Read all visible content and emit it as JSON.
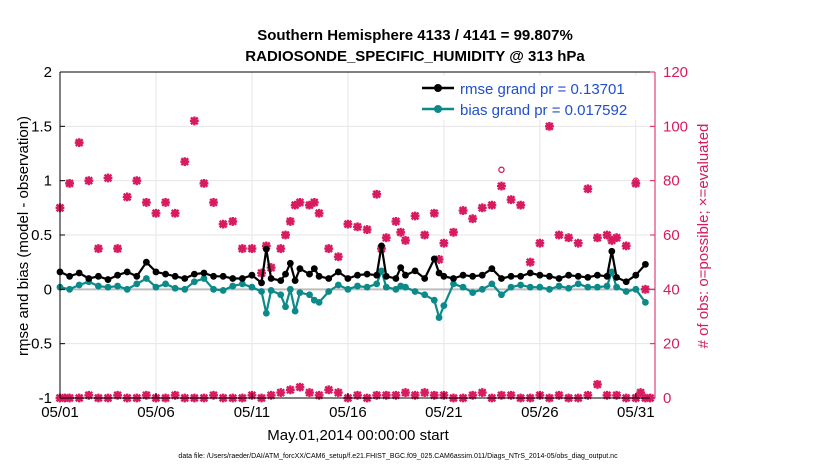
{
  "chart_data": {
    "type": "line",
    "title": "Southern Hemisphere 4133 / 4141 = 99.807%",
    "subtitle": "RADIOSONDE_SPECIFIC_HUMIDITY @ 313 hPa",
    "xlabel": "May.01,2014 00:00:00 start",
    "ylabel": "rmse and bias (model - observation)",
    "ylabel_right": "# of obs: o=possible; ×=evaluated",
    "footer": "data file: /Users/raeder/DAI/ATM_forcXX/CAM6_setup/f.e21.FHIST_BGC.f09_025.CAM6assim.011/Diags_NTrS_2014-05/obs_diag_output.nc",
    "xlim": [
      1,
      32
    ],
    "ylim": [
      -1,
      2
    ],
    "ylim_right": [
      0,
      120
    ],
    "x_ticks": [
      1,
      6,
      11,
      16,
      21,
      26,
      31
    ],
    "x_tick_labels": [
      "05/01",
      "05/06",
      "05/11",
      "05/16",
      "05/21",
      "05/26",
      "05/31"
    ],
    "y_ticks": [
      -1,
      -0.5,
      0,
      0.5,
      1,
      1.5,
      2
    ],
    "y_tick_labels": [
      "-1",
      "-0.5",
      "0",
      "0.5",
      "1",
      "1.5",
      "2"
    ],
    "y_right_ticks": [
      0,
      20,
      40,
      60,
      80,
      100,
      120
    ],
    "y_right_tick_labels": [
      "0",
      "20",
      "40",
      "60",
      "80",
      "100",
      "120"
    ],
    "grid": true,
    "legend_position": "top-right",
    "colors": {
      "rmse": "#000000",
      "bias": "#0c8a8a",
      "obs": "#d81b60",
      "axes": "#000000",
      "grid": "#e6e6e6",
      "legend_text": "#1f4fcc"
    },
    "series": [
      {
        "name": "rmse",
        "legend": "rmse grand pr = 0.13701",
        "x": [
          1,
          1.5,
          2,
          2.5,
          3,
          3.5,
          4,
          4.5,
          5,
          5.5,
          6,
          6.5,
          7,
          7.5,
          8,
          8.5,
          9,
          9.5,
          10,
          10.5,
          11,
          11.5,
          11.75,
          12,
          12.5,
          12.75,
          13,
          13.25,
          13.5,
          14,
          14.25,
          14.5,
          15,
          15.5,
          16,
          16.5,
          17,
          17.5,
          17.75,
          18,
          18.5,
          18.75,
          19,
          19.5,
          20,
          20.5,
          20.75,
          21,
          21.5,
          22,
          22.5,
          23,
          23.5,
          24,
          24.5,
          25,
          25.5,
          26,
          26.5,
          27,
          27.5,
          28,
          28.5,
          29,
          29.5,
          29.75,
          30,
          30.5,
          31,
          31.5
        ],
        "y": [
          0.16,
          0.12,
          0.15,
          0.1,
          0.12,
          0.09,
          0.13,
          0.16,
          0.12,
          0.25,
          0.16,
          0.14,
          0.12,
          0.1,
          0.14,
          0.15,
          0.12,
          0.12,
          0.1,
          0.1,
          0.13,
          0.06,
          0.37,
          0.1,
          0.08,
          0.14,
          0.24,
          0.08,
          0.19,
          0.14,
          0.19,
          0.12,
          0.1,
          0.16,
          0.1,
          0.13,
          0.14,
          0.13,
          0.4,
          0.12,
          0.1,
          0.2,
          0.13,
          0.17,
          0.1,
          0.28,
          0.15,
          0.12,
          0.1,
          0.13,
          0.12,
          0.13,
          0.19,
          0.1,
          0.12,
          0.12,
          0.15,
          0.13,
          0.12,
          0.1,
          0.13,
          0.12,
          0.11,
          0.13,
          0.12,
          0.35,
          0.11,
          0.07,
          0.13,
          0.23
        ]
      },
      {
        "name": "bias",
        "legend": "bias grand pr = 0.017592",
        "x": [
          1,
          1.5,
          2,
          2.5,
          3,
          3.5,
          4,
          4.5,
          5,
          5.5,
          6,
          6.5,
          7,
          7.5,
          8,
          8.5,
          9,
          9.5,
          10,
          10.5,
          11,
          11.5,
          11.75,
          12,
          12.5,
          12.75,
          13,
          13.25,
          13.5,
          14,
          14.25,
          14.5,
          15,
          15.5,
          16,
          16.5,
          17,
          17.5,
          17.75,
          18,
          18.5,
          18.75,
          19,
          19.5,
          20,
          20.5,
          20.75,
          21,
          21.5,
          22,
          22.5,
          23,
          23.5,
          24,
          24.5,
          25,
          25.5,
          26,
          26.5,
          27,
          27.5,
          28,
          28.5,
          29,
          29.5,
          29.75,
          30,
          30.5,
          31,
          31.5
        ],
        "y": [
          0.02,
          0.0,
          0.04,
          0.07,
          0.03,
          0.02,
          0.03,
          0.0,
          0.05,
          0.1,
          0.02,
          0.05,
          0.01,
          0.0,
          0.07,
          0.1,
          0.0,
          -0.01,
          0.03,
          0.05,
          0.02,
          -0.02,
          -0.22,
          -0.01,
          -0.05,
          -0.16,
          0.0,
          -0.2,
          -0.03,
          -0.05,
          -0.1,
          -0.12,
          -0.02,
          0.04,
          0.0,
          0.03,
          0.02,
          0.05,
          0.17,
          0.02,
          0.0,
          0.03,
          0.02,
          -0.02,
          -0.05,
          -0.1,
          -0.26,
          -0.15,
          0.05,
          0.02,
          -0.03,
          0.0,
          0.05,
          -0.05,
          0.02,
          0.04,
          0.02,
          0.02,
          0.0,
          0.03,
          0.01,
          0.05,
          0.02,
          0.02,
          0.03,
          0.16,
          0.02,
          -0.02,
          0.0,
          -0.12
        ]
      },
      {
        "name": "obs evaluated",
        "x": [
          1,
          1.5,
          2,
          2.5,
          3,
          3.5,
          4,
          4.5,
          5,
          5.5,
          6,
          6.5,
          7,
          7.5,
          8,
          8.5,
          9,
          9.5,
          10,
          10.5,
          11,
          11.5,
          11.75,
          12,
          12.5,
          12.75,
          13,
          13.25,
          13.5,
          14,
          14.25,
          14.5,
          15,
          15.5,
          16,
          16.5,
          17,
          17.5,
          17.75,
          18,
          18.5,
          18.75,
          19,
          19.5,
          20,
          20.5,
          20.75,
          21,
          21.5,
          22,
          22.5,
          23,
          23.5,
          24,
          24.5,
          25,
          25.5,
          26,
          26.5,
          27,
          27.5,
          28,
          28.5,
          29,
          29.5,
          29.75,
          30,
          30.5,
          31,
          31.5
        ],
        "y": [
          70,
          79,
          94,
          80,
          55,
          81,
          55,
          74,
          80,
          72,
          68,
          72,
          68,
          87,
          102,
          79,
          72,
          64,
          65,
          55,
          55,
          46,
          56,
          48,
          55,
          60,
          65,
          71,
          72,
          71,
          72,
          68,
          55,
          52,
          64,
          63,
          62,
          75,
          55,
          59,
          65,
          61,
          58,
          67,
          60,
          68,
          51,
          57,
          61,
          69,
          66,
          70,
          71,
          78,
          73,
          71,
          50,
          57,
          100,
          60,
          59,
          57,
          77,
          59,
          60,
          58,
          59,
          56,
          79,
          40
        ]
      },
      {
        "name": "obs possible",
        "x": [
          1,
          1.5,
          2,
          2.5,
          3,
          3.5,
          4,
          4.5,
          5,
          5.5,
          6,
          6.5,
          7,
          7.5,
          8,
          8.5,
          9,
          9.5,
          10,
          10.5,
          11,
          11.5,
          11.75,
          12,
          12.5,
          12.75,
          13,
          13.25,
          13.5,
          14,
          14.25,
          14.5,
          15,
          15.5,
          16,
          16.5,
          17,
          17.5,
          17.75,
          18,
          18.5,
          18.75,
          19,
          19.5,
          20,
          20.5,
          20.75,
          21,
          21.5,
          22,
          22.5,
          23,
          23.5,
          24,
          24.5,
          25,
          25.5,
          26,
          26.5,
          27,
          27.5,
          28,
          28.5,
          29,
          29.5,
          29.75,
          30,
          30.5,
          31,
          31.5
        ],
        "y": [
          70,
          79,
          94,
          80,
          55,
          81,
          55,
          74,
          80,
          72,
          68,
          72,
          68,
          87,
          102,
          79,
          72,
          64,
          65,
          55,
          55,
          46,
          56,
          48,
          55,
          60,
          65,
          71,
          72,
          71,
          72,
          68,
          55,
          52,
          64,
          63,
          62,
          75,
          55,
          59,
          65,
          61,
          58,
          67,
          60,
          68,
          51,
          57,
          61,
          69,
          66,
          70,
          71,
          84,
          73,
          71,
          50,
          57,
          100,
          60,
          59,
          57,
          77,
          59,
          60,
          58,
          59,
          56,
          80,
          40
        ]
      },
      {
        "name": "obs rejected",
        "x": [
          1,
          1.25,
          1.5,
          2,
          2.5,
          3,
          3.5,
          4,
          4.5,
          5,
          5.5,
          6,
          6.5,
          7,
          7.5,
          8,
          8.5,
          9,
          9.5,
          10,
          10.5,
          11,
          11.5,
          12,
          12.5,
          13,
          13.5,
          14,
          14.5,
          15,
          15.5,
          16,
          16.5,
          17,
          17.5,
          18,
          18.5,
          19,
          19.5,
          20,
          20.5,
          21,
          21.5,
          22,
          22.5,
          23,
          23.5,
          24,
          24.5,
          25,
          25.5,
          26,
          26.5,
          27,
          27.5,
          28,
          28.5,
          29,
          29.5,
          30,
          30.5,
          31,
          31.25,
          31.5,
          31.75
        ],
        "y": [
          0,
          0,
          0,
          0,
          1,
          0,
          0,
          1,
          0,
          0,
          1,
          0,
          0,
          1,
          0,
          0,
          0,
          1,
          0,
          0,
          0,
          1,
          0,
          1,
          2,
          3,
          4,
          2,
          1,
          3,
          2,
          0,
          1,
          0,
          1,
          1,
          1,
          2,
          1,
          2,
          1,
          1,
          0,
          0,
          1,
          2,
          0,
          1,
          1,
          0,
          0,
          1,
          0,
          1,
          0,
          0,
          1,
          5,
          1,
          1,
          0,
          0,
          2,
          0,
          0
        ]
      }
    ]
  }
}
